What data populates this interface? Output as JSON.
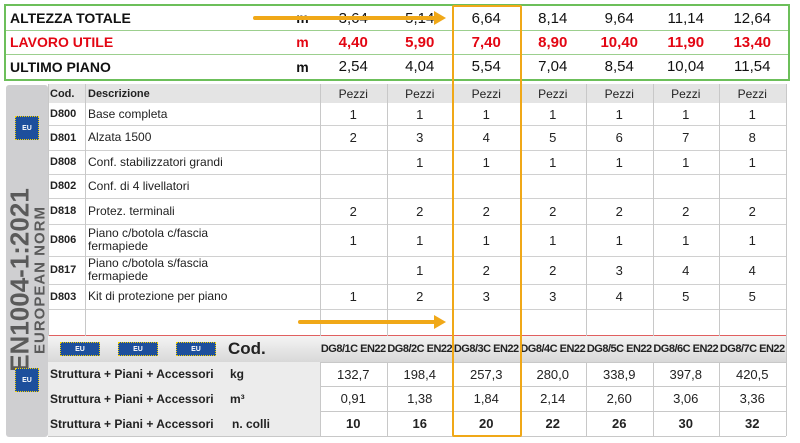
{
  "side": {
    "norm": "EN1004-1:2021",
    "subtitle": "EUROPEAN NORM",
    "badge": "EU"
  },
  "summary": {
    "rows": [
      {
        "label": "ALTEZZA TOTALE",
        "unit": "m",
        "values": [
          "3,64",
          "5,14",
          "6,64",
          "8,14",
          "9,64",
          "11,14",
          "12,64"
        ]
      },
      {
        "label": "LAVORO UTILE",
        "unit": "m",
        "values": [
          "4,40",
          "5,90",
          "7,40",
          "8,90",
          "10,40",
          "11,90",
          "13,40"
        ]
      },
      {
        "label": "ULTIMO PIANO",
        "unit": "m",
        "values": [
          "2,54",
          "4,04",
          "5,54",
          "7,04",
          "8,54",
          "10,04",
          "11,54"
        ]
      }
    ]
  },
  "parts": {
    "headers": {
      "code": "Cod.",
      "description": "Descrizione",
      "columns": [
        "Pezzi",
        "Pezzi",
        "Pezzi",
        "Pezzi",
        "Pezzi",
        "Pezzi",
        "Pezzi"
      ]
    },
    "rows": [
      {
        "code": "D800",
        "description": "Base completa",
        "quantities": [
          1,
          1,
          1,
          1,
          1,
          1,
          1
        ]
      },
      {
        "code": "D801",
        "description": "Alzata 1500",
        "quantities": [
          2,
          3,
          4,
          5,
          6,
          7,
          8
        ]
      },
      {
        "code": "D808",
        "description": "Conf. stabilizzatori grandi",
        "quantities": [
          null,
          1,
          1,
          1,
          1,
          1,
          1
        ]
      },
      {
        "code": "D802",
        "description": "Conf. di 4 livellatori",
        "quantities": [
          null,
          null,
          null,
          null,
          null,
          null,
          null
        ]
      },
      {
        "code": "D818",
        "description": "Protez. terminali",
        "quantities": [
          2,
          2,
          2,
          2,
          2,
          2,
          2
        ]
      },
      {
        "code": "D806",
        "description": "Piano c/botola c/fascia fermapiede",
        "quantities": [
          1,
          1,
          1,
          1,
          1,
          1,
          1
        ]
      },
      {
        "code": "D817",
        "description": "Piano c/botola s/fascia fermapiede",
        "quantities": [
          null,
          1,
          2,
          2,
          3,
          4,
          4
        ]
      },
      {
        "code": "D803",
        "description": "Kit di protezione per piano",
        "quantities": [
          1,
          2,
          3,
          3,
          4,
          5,
          5
        ]
      }
    ]
  },
  "kits": {
    "code_header": "Cod.",
    "codes": [
      "DG8/1C EN22",
      "DG8/2C EN22",
      "DG8/3C EN22",
      "DG8/4C EN22",
      "DG8/5C EN22",
      "DG8/6C EN22",
      "DG8/7C EN22"
    ],
    "rows": [
      {
        "label": "Struttura + Piani + Accessori",
        "unit": "kg",
        "values": [
          "132,7",
          "198,4",
          "257,3",
          "280,0",
          "338,9",
          "397,8",
          "420,5"
        ]
      },
      {
        "label": "Struttura + Piani + Accessori",
        "unit": "m³",
        "values": [
          "0,91",
          "1,38",
          "1,84",
          "2,14",
          "2,60",
          "3,06",
          "3,36"
        ]
      },
      {
        "label": "Struttura + Piani + Accessori",
        "unit": "n. colli",
        "values": [
          "10",
          "16",
          "20",
          "22",
          "26",
          "30",
          "32"
        ]
      }
    ]
  }
}
